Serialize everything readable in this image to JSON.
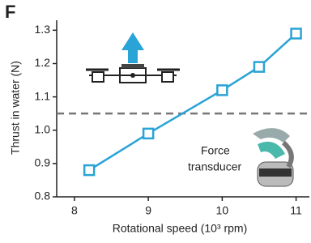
{
  "chart_data": {
    "type": "line",
    "panel_label": "F",
    "xlabel": "Rotational  speed (10³ rpm)",
    "ylabel": "Thrust in water (N)",
    "x": [
      8.2,
      9,
      10,
      10.5,
      11
    ],
    "series": [
      {
        "color": "#2aa3d6",
        "values": [
          0.88,
          0.99,
          1.12,
          1.19,
          1.29
        ]
      }
    ],
    "xlim": [
      7.76,
      11.18
    ],
    "xticks": [
      8,
      9,
      10,
      11
    ],
    "ylim": [
      0.8,
      1.33
    ],
    "yticks": [
      0.8,
      0.9,
      {
        "value": 1,
        "label": "1.0"
      },
      1.1,
      1.2,
      1.3
    ],
    "hline": {
      "value": 1.05,
      "color": "#777777"
    },
    "annotation": [
      "Force",
      "transducer"
    ]
  }
}
